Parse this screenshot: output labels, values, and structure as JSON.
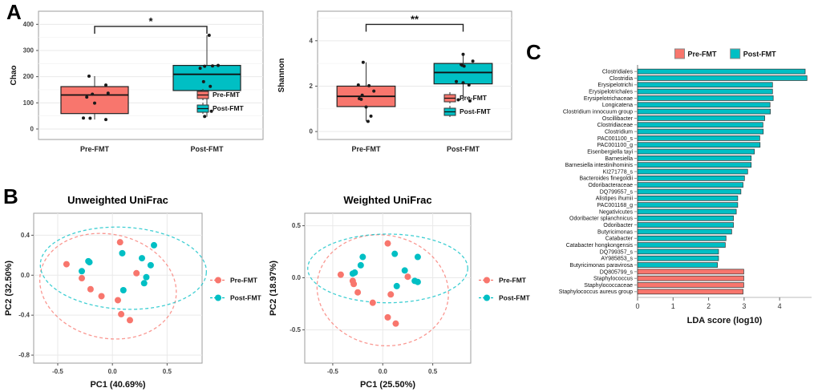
{
  "figure_labels": {
    "a": "A",
    "b": "B",
    "c": "C"
  },
  "colors": {
    "pre": "#F8766D",
    "post": "#00BFC4",
    "point": "#1a1a1a",
    "grid": "#e9e9e9",
    "minor_grid": "#f4f4f4",
    "border": "#9e9e9e",
    "text": "#333333"
  },
  "chart_data": [
    {
      "id": "chao",
      "type": "box",
      "panel": "A",
      "ylabel": "Chao",
      "yticks": [
        0,
        100,
        200,
        300,
        400
      ],
      "minor_ticks": [
        50,
        150,
        250,
        350
      ],
      "ylim": [
        -40,
        450
      ],
      "categories": [
        "Pre-FMT",
        "Post-FMT"
      ],
      "significance": {
        "label": "*",
        "y": 392,
        "tick_drop": 28
      },
      "legend_pos": {
        "x": 240,
        "y": 116
      },
      "groups": [
        {
          "name": "Pre-FMT",
          "color": "pre",
          "box": {
            "whisker_low": 36,
            "q1": 59,
            "median": 130,
            "q3": 162,
            "whisker_high": 202
          },
          "points": [
            [
              -0.05,
              202
            ],
            [
              0.1,
              168
            ],
            [
              0.12,
              137
            ],
            [
              -0.02,
              133
            ],
            [
              -0.07,
              122
            ],
            [
              0.0,
              99
            ],
            [
              -0.1,
              42
            ],
            [
              -0.04,
              41
            ],
            [
              0.1,
              36
            ]
          ]
        },
        {
          "name": "Post-FMT",
          "color": "post",
          "box": {
            "whisker_low": 47,
            "q1": 147,
            "median": 209,
            "q3": 243,
            "whisker_high": 358
          },
          "points": [
            [
              0.02,
              358
            ],
            [
              0.1,
              243
            ],
            [
              0.05,
              241
            ],
            [
              -0.02,
              240
            ],
            [
              -0.06,
              232
            ],
            [
              -0.03,
              181
            ],
            [
              0.03,
              163
            ],
            [
              -0.05,
              143
            ],
            [
              0.04,
              68
            ],
            [
              -0.02,
              48
            ]
          ]
        }
      ]
    },
    {
      "id": "shannon",
      "type": "box",
      "panel": "A",
      "ylabel": "Shannon",
      "yticks": [
        0,
        2,
        4
      ],
      "minor_ticks": [
        1,
        3,
        5
      ],
      "ylim": [
        -0.35,
        5.3
      ],
      "categories": [
        "Pre-FMT",
        "Post-FMT"
      ],
      "significance": {
        "label": "**",
        "y": 4.72,
        "tick_drop": 0.32
      },
      "legend_pos": {
        "x": 214,
        "y": 120
      },
      "groups": [
        {
          "name": "Pre-FMT",
          "color": "pre",
          "box": {
            "whisker_low": 0.45,
            "q1": 1.1,
            "median": 1.55,
            "q3": 2.0,
            "whisker_high": 3.05
          },
          "points": [
            [
              -0.03,
              3.05
            ],
            [
              -0.08,
              2.05
            ],
            [
              0.03,
              2.02
            ],
            [
              0.08,
              1.78
            ],
            [
              -0.04,
              1.6
            ],
            [
              -0.07,
              1.45
            ],
            [
              -0.05,
              1.42
            ],
            [
              0.0,
              1.08
            ],
            [
              0.05,
              0.68
            ],
            [
              0.02,
              0.45
            ]
          ]
        },
        {
          "name": "Post-FMT",
          "color": "post",
          "box": {
            "whisker_low": 1.35,
            "q1": 2.1,
            "median": 2.6,
            "q3": 3.0,
            "whisker_high": 3.4
          },
          "points": [
            [
              0.0,
              3.4
            ],
            [
              0.1,
              3.1
            ],
            [
              -0.02,
              2.95
            ],
            [
              -0.01,
              2.92
            ],
            [
              0.01,
              2.88
            ],
            [
              -0.07,
              2.2
            ],
            [
              0.0,
              2.15
            ],
            [
              0.06,
              2.05
            ],
            [
              -0.05,
              1.4
            ],
            [
              0.07,
              1.35
            ]
          ]
        }
      ]
    },
    {
      "id": "unweighted",
      "type": "scatter",
      "panel": "B",
      "title": "Unweighted UniFrac",
      "xlabel": "PC1 (40.69%)",
      "ylabel": "PC2 (32.50%)",
      "xlim": [
        -0.72,
        0.82
      ],
      "ylim": [
        -0.88,
        0.62
      ],
      "xticks": [
        "-0.5",
        "0.0",
        "0.5"
      ],
      "yticks": [
        "-0.8",
        "-0.4",
        "0.0",
        "0.4"
      ],
      "series": [
        {
          "name": "Pre-FMT",
          "color": "pre",
          "ellipse": {
            "cx": -0.04,
            "cy": -0.11,
            "rx": 0.63,
            "ry": 0.52,
            "rot": 12
          },
          "points": [
            [
              -0.42,
              0.11
            ],
            [
              -0.28,
              -0.03
            ],
            [
              -0.2,
              -0.14
            ],
            [
              -0.1,
              -0.21
            ],
            [
              0.07,
              0.33
            ],
            [
              0.05,
              -0.25
            ],
            [
              0.22,
              0.02
            ],
            [
              0.08,
              -0.39
            ],
            [
              0.16,
              -0.45
            ]
          ]
        },
        {
          "name": "Post-FMT",
          "color": "post",
          "ellipse": {
            "cx": 0.1,
            "cy": 0.07,
            "rx": 0.76,
            "ry": 0.41,
            "rot": 3
          },
          "points": [
            [
              -0.22,
              0.14
            ],
            [
              -0.21,
              0.13
            ],
            [
              -0.28,
              0.04
            ],
            [
              0.09,
              0.22
            ],
            [
              0.27,
              0.17
            ],
            [
              0.35,
              0.1
            ],
            [
              0.38,
              0.3
            ],
            [
              0.31,
              -0.02
            ],
            [
              0.29,
              -0.08
            ],
            [
              0.1,
              -0.15
            ]
          ]
        }
      ]
    },
    {
      "id": "weighted",
      "type": "scatter",
      "panel": "B",
      "title": "Weighted UniFrac",
      "xlabel": "PC1 (25.50%)",
      "ylabel": "PC2 (18.97%)",
      "xlim": [
        -0.78,
        0.88
      ],
      "ylim": [
        -0.82,
        0.62
      ],
      "xticks": [
        "-0.5",
        "0.0",
        "0.5"
      ],
      "yticks": [
        "-0.5",
        "0.0",
        "0.5"
      ],
      "series": [
        {
          "name": "Pre-FMT",
          "color": "pre",
          "ellipse": {
            "cx": 0.0,
            "cy": -0.12,
            "rx": 0.66,
            "ry": 0.53,
            "rot": 10
          },
          "points": [
            [
              -0.42,
              0.03
            ],
            [
              -0.3,
              -0.03
            ],
            [
              -0.29,
              -0.06
            ],
            [
              -0.25,
              -0.14
            ],
            [
              -0.1,
              -0.24
            ],
            [
              0.05,
              0.33
            ],
            [
              0.08,
              -0.16
            ],
            [
              0.25,
              0.01
            ],
            [
              0.05,
              -0.38
            ],
            [
              0.13,
              -0.44
            ]
          ]
        },
        {
          "name": "Post-FMT",
          "color": "post",
          "ellipse": {
            "cx": 0.05,
            "cy": 0.09,
            "rx": 0.8,
            "ry": 0.33,
            "rot": 0
          },
          "points": [
            [
              -0.2,
              0.2
            ],
            [
              -0.22,
              0.12
            ],
            [
              -0.3,
              0.04
            ],
            [
              -0.28,
              0.05
            ],
            [
              0.12,
              0.23
            ],
            [
              0.35,
              0.2
            ],
            [
              0.22,
              0.07
            ],
            [
              0.14,
              -0.08
            ],
            [
              0.32,
              -0.03
            ],
            [
              0.35,
              -0.04
            ]
          ]
        }
      ]
    },
    {
      "id": "lda",
      "type": "bar-h",
      "panel": "C",
      "xlabel": "LDA score (log10)",
      "xticks": [
        0,
        1,
        2,
        3,
        4
      ],
      "xlim": [
        0,
        4.9
      ],
      "legend": [
        {
          "label": "Pre-FMT",
          "color": "pre"
        },
        {
          "label": "Post-FMT",
          "color": "post"
        }
      ],
      "items": [
        {
          "label": "Clostridiales",
          "value": 4.72,
          "group": "post"
        },
        {
          "label": "Clostridia",
          "value": 4.77,
          "group": "post"
        },
        {
          "label": "Erysipelotrichi",
          "value": 3.8,
          "group": "post"
        },
        {
          "label": "Erysipelotrichales",
          "value": 3.8,
          "group": "post"
        },
        {
          "label": "Erysipelotrichaceae",
          "value": 3.82,
          "group": "post"
        },
        {
          "label": "Longicatena",
          "value": 3.73,
          "group": "post"
        },
        {
          "label": "Clostridium innocuum group",
          "value": 3.74,
          "group": "post"
        },
        {
          "label": "Oscillibacter",
          "value": 3.58,
          "group": "post"
        },
        {
          "label": "Clostridiaceae",
          "value": 3.53,
          "group": "post"
        },
        {
          "label": "Clostridium",
          "value": 3.54,
          "group": "post"
        },
        {
          "label": "PAC001100_s",
          "value": 3.44,
          "group": "post"
        },
        {
          "label": "PAC001100_g",
          "value": 3.45,
          "group": "post"
        },
        {
          "label": "Eisenbergiella tayi",
          "value": 3.29,
          "group": "post"
        },
        {
          "label": "Barnesiella",
          "value": 3.2,
          "group": "post"
        },
        {
          "label": "Barnesiella intestinihominis",
          "value": 3.2,
          "group": "post"
        },
        {
          "label": "KI271778_s",
          "value": 3.1,
          "group": "post"
        },
        {
          "label": "Bacteroides finegoldii",
          "value": 3.01,
          "group": "post"
        },
        {
          "label": "Odoribacteraceae",
          "value": 2.97,
          "group": "post"
        },
        {
          "label": "DQ799557_s",
          "value": 2.91,
          "group": "post"
        },
        {
          "label": "Alistipes ihumii",
          "value": 2.82,
          "group": "post"
        },
        {
          "label": "PAC001168_g",
          "value": 2.82,
          "group": "post"
        },
        {
          "label": "Negativicutes",
          "value": 2.78,
          "group": "post"
        },
        {
          "label": "Odoribacter splanchnicus",
          "value": 2.7,
          "group": "post"
        },
        {
          "label": "Odoribacter",
          "value": 2.7,
          "group": "post"
        },
        {
          "label": "Butyricimonas",
          "value": 2.65,
          "group": "post"
        },
        {
          "label": "Catabacter",
          "value": 2.49,
          "group": "post"
        },
        {
          "label": "Catabacter hongkongensis",
          "value": 2.47,
          "group": "post"
        },
        {
          "label": "DQ799357_s",
          "value": 2.28,
          "group": "post"
        },
        {
          "label": "AY985853_s",
          "value": 2.28,
          "group": "post"
        },
        {
          "label": "Butyricimonas paravirosa",
          "value": 2.25,
          "group": "post"
        },
        {
          "label": "DQ805799_s",
          "value": 2.99,
          "group": "pre"
        },
        {
          "label": "Staphylococcus",
          "value": 2.99,
          "group": "pre"
        },
        {
          "label": "Staphylococcaceae",
          "value": 2.99,
          "group": "pre"
        },
        {
          "label": "Staphylococcus aureus group",
          "value": 2.97,
          "group": "pre"
        }
      ]
    }
  ]
}
